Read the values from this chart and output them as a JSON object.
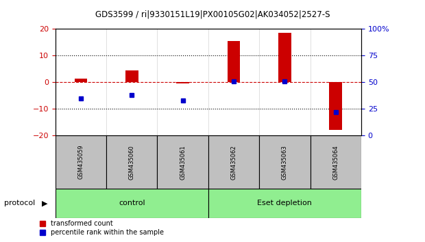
{
  "title": "GDS3599 / ri|9330151L19|PX00105G02|AK034052|2527-S",
  "samples": [
    "GSM435059",
    "GSM435060",
    "GSM435061",
    "GSM435062",
    "GSM435063",
    "GSM435064"
  ],
  "red_bars": [
    1.5,
    4.5,
    -0.5,
    15.5,
    18.5,
    -18.0
  ],
  "blue_percentile": [
    35,
    38,
    33,
    51,
    51,
    22
  ],
  "ylim_left": [
    -20,
    20
  ],
  "yticks_left": [
    -20,
    -10,
    0,
    10,
    20
  ],
  "ylim_right": [
    0,
    100
  ],
  "yticks_right": [
    0,
    25,
    50,
    75,
    100
  ],
  "ylabel_left_color": "#cc0000",
  "ylabel_right_color": "#0000cc",
  "zero_line_color": "#cc0000",
  "bar_color": "#cc0000",
  "dot_color": "#0000cc",
  "bg_color": "#ffffff",
  "plot_bg": "#ffffff",
  "grid_color": "#000000",
  "label_control": "control",
  "label_eset": "Eset depletion",
  "legend_red": "transformed count",
  "legend_blue": "percentile rank within the sample",
  "protocol_label": "protocol",
  "group_bg": "#c0c0c0",
  "group_label_bg": "#90EE90"
}
